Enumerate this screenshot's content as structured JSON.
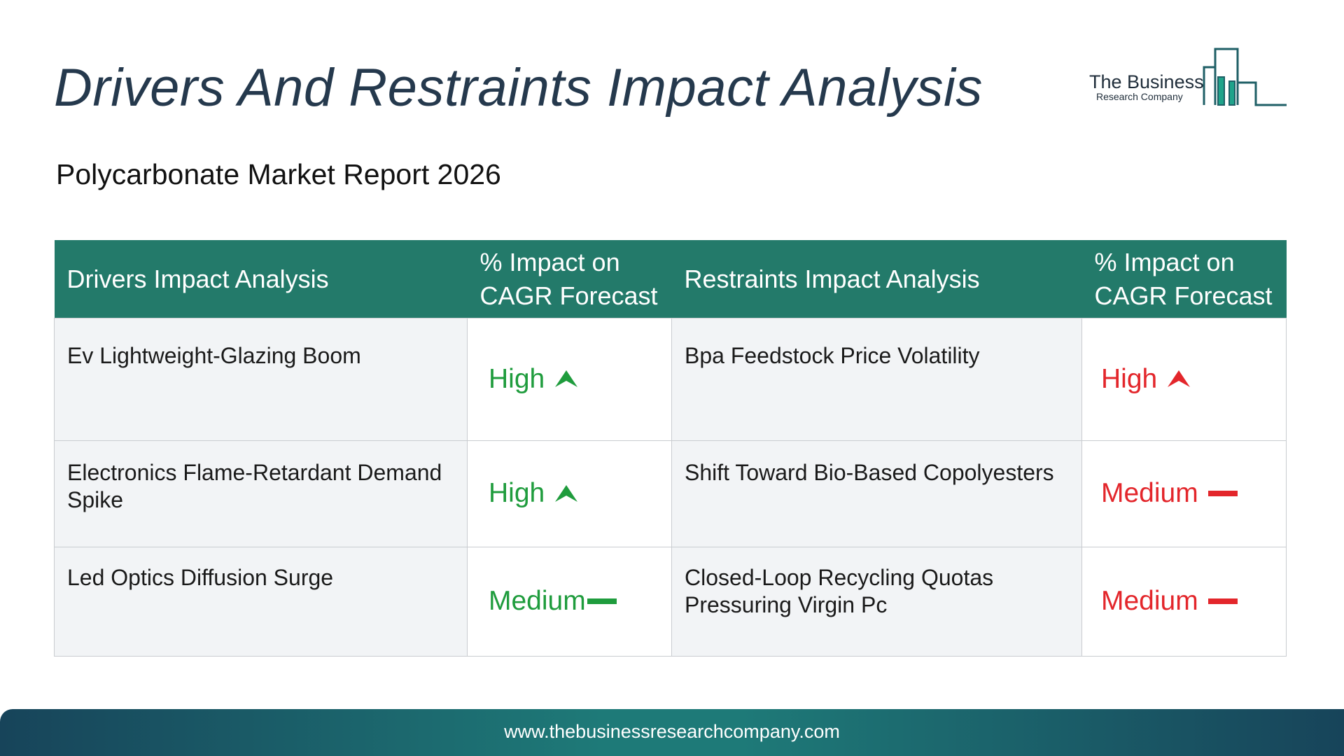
{
  "header": {
    "title": "Drivers And Restraints Impact Analysis",
    "subtitle": "Polycarbonate Market Report 2026"
  },
  "logo": {
    "line1": "The Business",
    "line2": "Research Company",
    "icon": "bar-chart-logo-icon"
  },
  "table": {
    "columns": [
      "Drivers Impact Analysis",
      "% Impact on CAGR Forecast",
      "Restraints Impact Analysis",
      "% Impact on CAGR Forecast"
    ],
    "rows": [
      {
        "driver": "Ev Lightweight-Glazing Boom",
        "driver_impact": "High",
        "driver_icon": "arrow-up-icon",
        "restraint": "Bpa Feedstock Price Volatility",
        "restraint_impact": "High",
        "restraint_icon": "arrow-up-icon"
      },
      {
        "driver": "Electronics Flame-Retardant Demand Spike",
        "driver_impact": "High",
        "driver_icon": "arrow-up-icon",
        "restraint": "Shift Toward Bio-Based Copolyesters",
        "restraint_impact": "Medium",
        "restraint_icon": "dash-icon"
      },
      {
        "driver": "Led Optics Diffusion Surge",
        "driver_impact": "Medium",
        "driver_icon": "dash-icon",
        "restraint": "Closed-Loop Recycling Quotas Pressuring Virgin Pc",
        "restraint_impact": "Medium",
        "restraint_icon": "dash-icon"
      }
    ]
  },
  "colors": {
    "header_bg": "#237a6a",
    "driver_impact": "#1f9c3d",
    "restraint_impact": "#e3262b",
    "title": "#25394d"
  },
  "footer": {
    "url": "www.thebusinessresearchcompany.com"
  }
}
